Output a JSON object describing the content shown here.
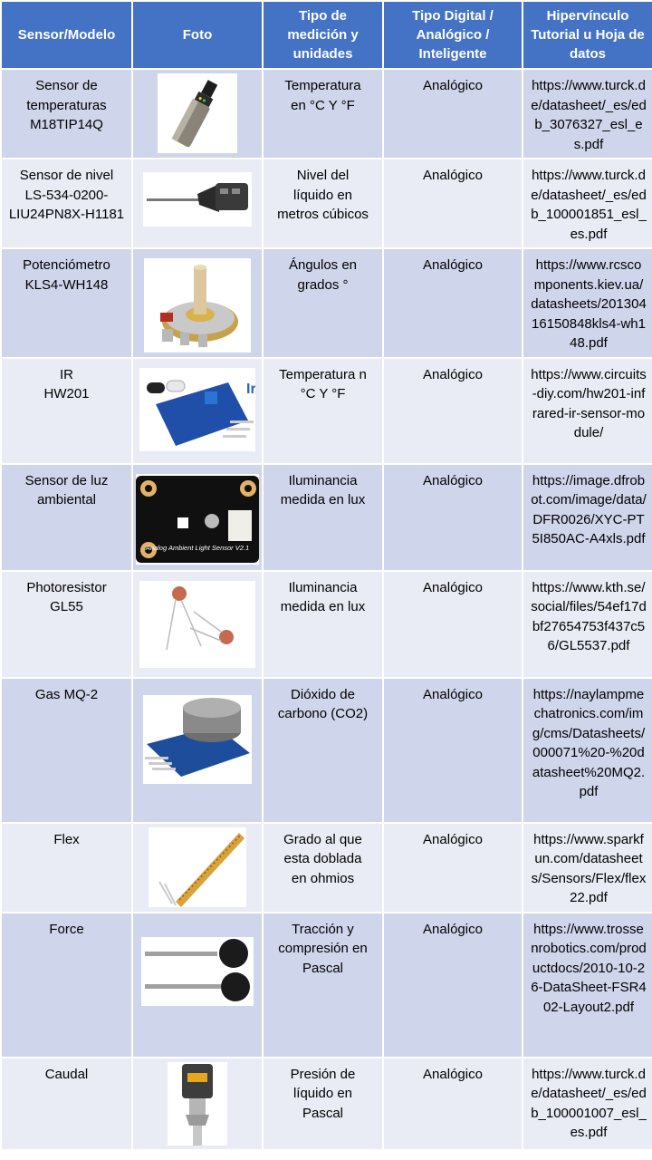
{
  "headers": {
    "sensor": "Sensor/Modelo",
    "foto": "Foto",
    "medicion": "Tipo de medición y unidades",
    "tipo": "Tipo Digital / Analógico / Inteligente",
    "link": "Hipervínculo Tutorial u Hoja de datos"
  },
  "rows": [
    {
      "sensor": "Sensor de temperaturas\nM18TIP14Q",
      "medicion": "Temperatura\nen °C Y °F",
      "tipo": "Analógico",
      "link": "https://www.turck.de/datasheet/_es/edb_3076327_esl_es.pdf",
      "photo_icon": "temperature-sensor-icon"
    },
    {
      "sensor": "Sensor de nivel\nLS-534-0200-LIU24PN8X-H1181",
      "medicion": "Nivel del\nlíquido en\nmetros cúbicos",
      "tipo": "Analógico",
      "link": "https://www.turck.de/datasheet/_es/edb_100001851_esl_es.pdf",
      "photo_icon": "level-sensor-icon"
    },
    {
      "sensor": "Potenciómetro\nKLS4-WH148",
      "medicion": "Ángulos en\ngrados °",
      "tipo": "Analógico",
      "link": "https://www.rcscomponents.kiev.ua/datasheets/20130416150848kls4-wh148.pdf",
      "photo_icon": "potentiometer-icon"
    },
    {
      "sensor": "IR\nHW201",
      "medicion": "Temperatura n\n°C Y °F",
      "tipo": "Analógico",
      "link": "https://www.circuits-diy.com/hw201-infrared-ir-sensor-module/",
      "photo_icon": "ir-sensor-icon",
      "photo_text": "Ir"
    },
    {
      "sensor": "Sensor de luz\nambiental",
      "medicion": "Iluminancia\nmedida en lux",
      "tipo": "Analógico",
      "link": "https://image.dfrobot.com/image/data/DFR0026/XYC-PT5I850AC-A4xls.pdf",
      "photo_icon": "ambient-light-sensor-icon",
      "photo_text": "Analog Ambient Light Sensor V2.1"
    },
    {
      "sensor": "Photoresistor\nGL55",
      "medicion": "Iluminancia\nmedida en lux",
      "tipo": "Analógico",
      "link": "https://www.kth.se/social/files/54ef17dbf27654753f437c56/GL5537.pdf",
      "photo_icon": "photoresistor-icon"
    },
    {
      "sensor": "Gas MQ-2",
      "medicion": "Dióxido de\ncarbono (CO2)",
      "tipo": "Analógico",
      "link": "https://naylampmechatronics.com/img/cms/Datasheets/000071%20-%20datasheet%20MQ2.pdf",
      "photo_icon": "gas-sensor-icon"
    },
    {
      "sensor": "Flex",
      "medicion": "Grado al que\nesta doblada\nen ohmios",
      "tipo": "Analógico",
      "link": "https://www.sparkfun.com/datasheets/Sensors/Flex/flex22.pdf",
      "photo_icon": "flex-sensor-icon"
    },
    {
      "sensor": "Force",
      "medicion": "Tracción y\ncompresión en\nPascal",
      "tipo": "Analógico",
      "link": "https://www.trossenrobotics.com/productdocs/2010-10-26-DataSheet-FSR402-Layout2.pdf",
      "photo_icon": "force-sensor-icon"
    },
    {
      "sensor": "Caudal",
      "medicion": "Presión de\nlíquido en\nPascal",
      "tipo": "Analógico",
      "link": "https://www.turck.de/datasheet/_es/edb_100001007_esl_es.pdf",
      "photo_icon": "flow-sensor-icon"
    }
  ]
}
